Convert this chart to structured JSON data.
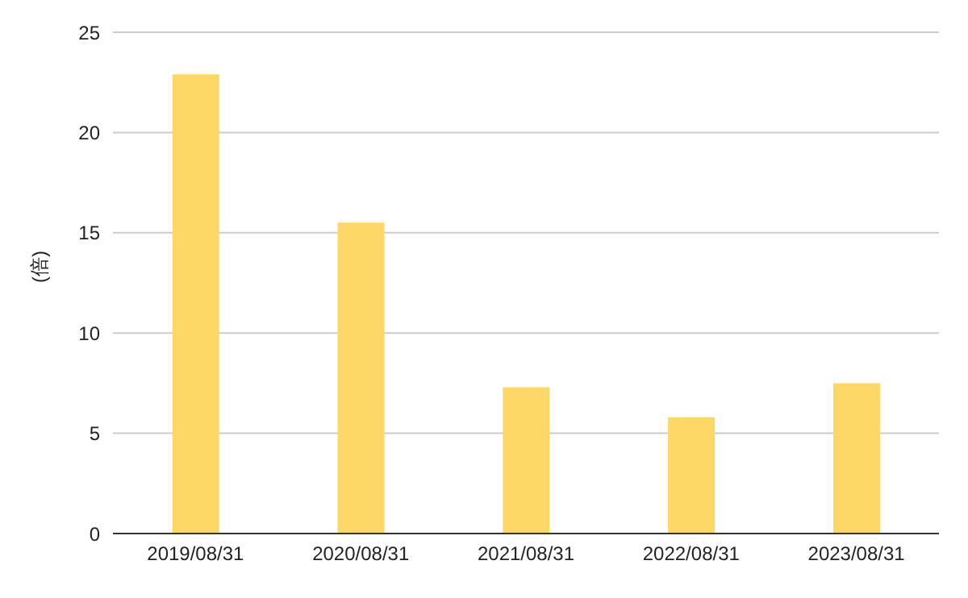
{
  "chart_data": {
    "type": "bar",
    "ylabel": "(倍)",
    "categories": [
      "2019/08/31",
      "2020/08/31",
      "2021/08/31",
      "2022/08/31",
      "2023/08/31"
    ],
    "values": [
      22.9,
      15.5,
      7.3,
      5.8,
      7.5
    ],
    "color": "#fdd866",
    "ylim": [
      0,
      25
    ],
    "yticks": [
      0,
      5,
      10,
      15,
      20,
      25
    ],
    "grid": "y"
  }
}
